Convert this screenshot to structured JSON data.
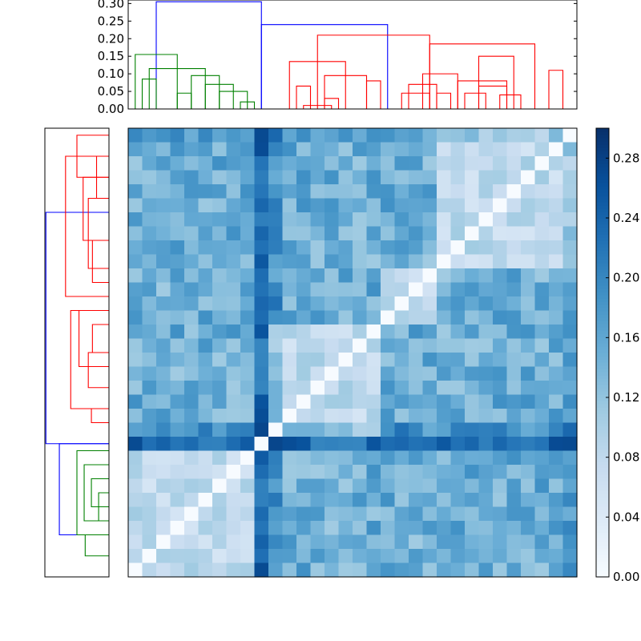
{
  "chart_data": {
    "type": "heatmap",
    "description": "clustered distance heatmap with top and left dendrograms and a colorbar",
    "colors": {
      "blue_cluster": "#0000ff",
      "red_cluster": "#ff0000",
      "green_cluster": "#008000",
      "colormap": [
        "#f7fbff",
        "#deebf7",
        "#c6dbef",
        "#9ecae1",
        "#6baed6",
        "#4292c6",
        "#2171b5",
        "#08519c",
        "#08306b"
      ]
    },
    "heatmap": {
      "n": 32,
      "value_range": [
        0.0,
        0.3
      ],
      "seed": 7
    },
    "colorbar": {
      "range": [
        0.0,
        0.3
      ],
      "ticks": [
        0.0,
        0.04,
        0.08,
        0.12,
        0.16,
        0.2,
        0.24,
        0.28
      ],
      "tick_labels": [
        "0.00",
        "0.04",
        "0.08",
        "0.12",
        "0.16",
        "0.20",
        "0.24",
        "0.28"
      ]
    },
    "top_dendrogram": {
      "y_range": [
        0.0,
        0.31
      ],
      "ticks": [
        0.0,
        0.05,
        0.1,
        0.15,
        0.2,
        0.25,
        0.3
      ],
      "tick_labels": [
        "0.00",
        "0.05",
        "0.10",
        "0.15",
        "0.20",
        "0.25",
        "0.30"
      ],
      "x_range": [
        0,
        32
      ],
      "links": [
        {
          "x1": 2.0,
          "x2": 9.5,
          "h": 0.305,
          "color": "blue"
        },
        {
          "x1": 9.5,
          "x2": 18.5,
          "h": 0.24,
          "color": "blue"
        },
        {
          "x1": 0.5,
          "x2": 3.5,
          "h": 0.155,
          "color": "green"
        },
        {
          "x1": 1.5,
          "x2": 5.5,
          "h": 0.115,
          "color": "green"
        },
        {
          "x1": 4.5,
          "x2": 6.5,
          "h": 0.095,
          "color": "green"
        },
        {
          "x1": 5.5,
          "x2": 7.5,
          "h": 0.07,
          "color": "green"
        },
        {
          "x1": 6.5,
          "x2": 8.5,
          "h": 0.05,
          "color": "green"
        },
        {
          "x1": 1.0,
          "x2": 2.0,
          "h": 0.085,
          "color": "green"
        },
        {
          "x1": 3.5,
          "x2": 4.5,
          "h": 0.045,
          "color": "green"
        },
        {
          "x1": 8.0,
          "x2": 9.0,
          "h": 0.02,
          "color": "green"
        },
        {
          "x1": 13.5,
          "x2": 21.5,
          "h": 0.21,
          "color": "red"
        },
        {
          "x1": 21.5,
          "x2": 29.0,
          "h": 0.185,
          "color": "red"
        },
        {
          "x1": 11.5,
          "x2": 15.5,
          "h": 0.135,
          "color": "red"
        },
        {
          "x1": 14.0,
          "x2": 17.0,
          "h": 0.095,
          "color": "red"
        },
        {
          "x1": 17.0,
          "x2": 18.0,
          "h": 0.08,
          "color": "red"
        },
        {
          "x1": 12.0,
          "x2": 13.0,
          "h": 0.065,
          "color": "red"
        },
        {
          "x1": 12.5,
          "x2": 14.5,
          "h": 0.01,
          "color": "red"
        },
        {
          "x1": 14.0,
          "x2": 15.0,
          "h": 0.03,
          "color": "red"
        },
        {
          "x1": 19.5,
          "x2": 21.5,
          "h": 0.045,
          "color": "red"
        },
        {
          "x1": 25.0,
          "x2": 27.5,
          "h": 0.15,
          "color": "red"
        },
        {
          "x1": 21.0,
          "x2": 23.5,
          "h": 0.1,
          "color": "red"
        },
        {
          "x1": 23.5,
          "x2": 27.0,
          "h": 0.08,
          "color": "red"
        },
        {
          "x1": 25.0,
          "x2": 27.0,
          "h": 0.065,
          "color": "red"
        },
        {
          "x1": 20.0,
          "x2": 22.0,
          "h": 0.07,
          "color": "red"
        },
        {
          "x1": 22.0,
          "x2": 23.0,
          "h": 0.045,
          "color": "red"
        },
        {
          "x1": 24.0,
          "x2": 25.5,
          "h": 0.045,
          "color": "red"
        },
        {
          "x1": 26.5,
          "x2": 28.0,
          "h": 0.04,
          "color": "red"
        },
        {
          "x1": 30.0,
          "x2": 31.0,
          "h": 0.11,
          "color": "red"
        }
      ]
    },
    "left_dendrogram": {
      "x_range": [
        0.31,
        0.0
      ],
      "y_range": [
        0,
        32
      ],
      "links": [
        {
          "y1": 6.0,
          "y2": 22.5,
          "h": 0.305,
          "color": "blue"
        },
        {
          "y1": 22.5,
          "y2": 29.0,
          "h": 0.24,
          "color": "blue"
        },
        {
          "y1": 2.0,
          "y2": 12.0,
          "h": 0.21,
          "color": "red"
        },
        {
          "y1": 13.0,
          "y2": 20.0,
          "h": 0.185,
          "color": "red"
        },
        {
          "y1": 0.5,
          "y2": 3.5,
          "h": 0.155,
          "color": "red"
        },
        {
          "y1": 3.5,
          "y2": 8.0,
          "h": 0.125,
          "color": "red"
        },
        {
          "y1": 5.0,
          "y2": 10.0,
          "h": 0.1,
          "color": "red"
        },
        {
          "y1": 8.0,
          "y2": 11.0,
          "h": 0.08,
          "color": "red"
        },
        {
          "y1": 2.0,
          "y2": 5.0,
          "h": 0.06,
          "color": "red"
        },
        {
          "y1": 13.0,
          "y2": 17.0,
          "h": 0.145,
          "color": "red"
        },
        {
          "y1": 16.0,
          "y2": 18.5,
          "h": 0.1,
          "color": "red"
        },
        {
          "y1": 14.0,
          "y2": 16.0,
          "h": 0.08,
          "color": "red"
        },
        {
          "y1": 20.0,
          "y2": 21.0,
          "h": 0.085,
          "color": "red"
        },
        {
          "y1": 23.0,
          "y2": 29.0,
          "h": 0.155,
          "color": "green"
        },
        {
          "y1": 24.0,
          "y2": 28.0,
          "h": 0.12,
          "color": "green"
        },
        {
          "y1": 25.0,
          "y2": 27.0,
          "h": 0.085,
          "color": "green"
        },
        {
          "y1": 29.0,
          "y2": 30.5,
          "h": 0.115,
          "color": "green"
        },
        {
          "y1": 26.0,
          "y2": 28.0,
          "h": 0.05,
          "color": "green"
        }
      ]
    }
  }
}
